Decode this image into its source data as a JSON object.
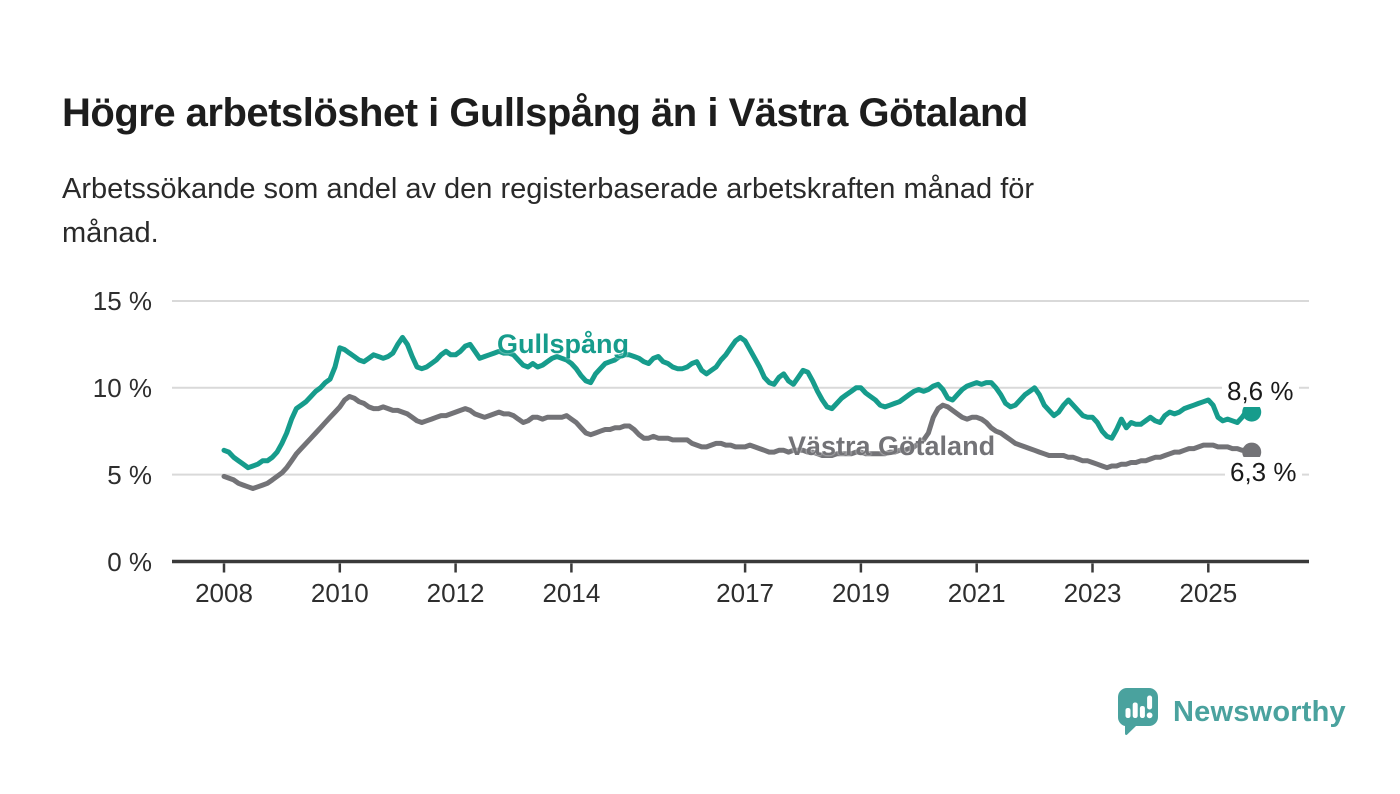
{
  "header": {
    "title": "Högre arbetslöshet i Gullspång än i Västra Götaland",
    "subtitle_line1": "Arbetssökande som andel av den registerbaserade arbetskraften månad för",
    "subtitle_line2": "månad."
  },
  "chart_data": {
    "type": "line",
    "title": "Högre arbetslöshet i Gullspång än i Västra Götaland",
    "subtitle": "Arbetssökande som andel av den registerbaserade arbetskraften månad för månad.",
    "x_start": "2008-01",
    "x_end": "2025-10",
    "frequency": "monthly",
    "ylim": [
      0,
      15
    ],
    "grid": "horizontal",
    "legend_position": "inline-labels",
    "y_tick_labels": [
      "15 %",
      "10 %",
      "5 %",
      "0 %"
    ],
    "y_tick_values": [
      15,
      10,
      5,
      0
    ],
    "x_tick_years": [
      2008,
      2010,
      2012,
      2014,
      2017,
      2019,
      2021,
      2023,
      2025
    ],
    "x_tick_labels": [
      "2008",
      "2010",
      "2012",
      "2014",
      "2017",
      "2019",
      "2021",
      "2023",
      "2025"
    ],
    "series": [
      {
        "name": "Gullspång",
        "color": "#169c8c",
        "end_label": "8,6 %",
        "end_value": 8.6,
        "values": [
          6.4,
          6.3,
          6.0,
          5.8,
          5.6,
          5.4,
          5.5,
          5.6,
          5.8,
          5.8,
          6.0,
          6.3,
          6.8,
          7.4,
          8.2,
          8.8,
          9.0,
          9.2,
          9.5,
          9.8,
          10.0,
          10.3,
          10.5,
          11.2,
          12.3,
          12.2,
          12.0,
          11.8,
          11.6,
          11.5,
          11.7,
          11.9,
          11.8,
          11.7,
          11.8,
          12.0,
          12.5,
          12.9,
          12.5,
          11.8,
          11.2,
          11.1,
          11.2,
          11.4,
          11.6,
          11.9,
          12.1,
          11.9,
          11.9,
          12.1,
          12.4,
          12.5,
          12.1,
          11.7,
          11.8,
          11.9,
          12.0,
          12.1,
          12.0,
          12.0,
          11.9,
          11.6,
          11.3,
          11.2,
          11.4,
          11.2,
          11.3,
          11.5,
          11.7,
          11.8,
          11.7,
          11.6,
          11.4,
          11.1,
          10.7,
          10.4,
          10.3,
          10.8,
          11.1,
          11.4,
          11.5,
          11.6,
          11.8,
          11.9,
          11.9,
          11.8,
          11.7,
          11.5,
          11.4,
          11.7,
          11.8,
          11.5,
          11.4,
          11.2,
          11.1,
          11.1,
          11.2,
          11.4,
          11.5,
          11.0,
          10.8,
          11.0,
          11.2,
          11.6,
          11.9,
          12.3,
          12.7,
          12.9,
          12.7,
          12.2,
          11.7,
          11.2,
          10.6,
          10.3,
          10.2,
          10.6,
          10.8,
          10.4,
          10.2,
          10.6,
          11.0,
          10.9,
          10.4,
          9.8,
          9.3,
          8.9,
          8.8,
          9.1,
          9.4,
          9.6,
          9.8,
          10.0,
          10.0,
          9.7,
          9.5,
          9.3,
          9.0,
          8.9,
          9.0,
          9.1,
          9.2,
          9.4,
          9.6,
          9.8,
          9.9,
          9.8,
          9.9,
          10.1,
          10.2,
          9.9,
          9.4,
          9.3,
          9.6,
          9.9,
          10.1,
          10.2,
          10.3,
          10.2,
          10.3,
          10.3,
          10.0,
          9.6,
          9.1,
          8.9,
          9.0,
          9.3,
          9.6,
          9.8,
          10.0,
          9.6,
          9.0,
          8.7,
          8.4,
          8.6,
          9.0,
          9.3,
          9.0,
          8.7,
          8.4,
          8.3,
          8.3,
          8.0,
          7.5,
          7.2,
          7.1,
          7.6,
          8.2,
          7.7,
          8.0,
          7.9,
          7.9,
          8.1,
          8.3,
          8.1,
          8.0,
          8.4,
          8.6,
          8.5,
          8.6,
          8.8,
          8.9,
          9.0,
          9.1,
          9.2,
          9.3,
          9.0,
          8.3,
          8.1,
          8.2,
          8.1,
          8.0,
          8.3,
          8.7,
          8.6
        ]
      },
      {
        "name": "Västra Götaland",
        "color": "#737377",
        "end_label": "6,3 %",
        "end_value": 6.3,
        "values": [
          4.9,
          4.8,
          4.7,
          4.5,
          4.4,
          4.3,
          4.2,
          4.3,
          4.4,
          4.5,
          4.7,
          4.9,
          5.1,
          5.4,
          5.8,
          6.2,
          6.5,
          6.8,
          7.1,
          7.4,
          7.7,
          8.0,
          8.3,
          8.6,
          8.9,
          9.3,
          9.5,
          9.4,
          9.2,
          9.1,
          8.9,
          8.8,
          8.8,
          8.9,
          8.8,
          8.7,
          8.7,
          8.6,
          8.5,
          8.3,
          8.1,
          8.0,
          8.1,
          8.2,
          8.3,
          8.4,
          8.4,
          8.5,
          8.6,
          8.7,
          8.8,
          8.7,
          8.5,
          8.4,
          8.3,
          8.4,
          8.5,
          8.6,
          8.5,
          8.5,
          8.4,
          8.2,
          8.0,
          8.1,
          8.3,
          8.3,
          8.2,
          8.3,
          8.3,
          8.3,
          8.3,
          8.4,
          8.2,
          8.0,
          7.7,
          7.4,
          7.3,
          7.4,
          7.5,
          7.6,
          7.6,
          7.7,
          7.7,
          7.8,
          7.8,
          7.6,
          7.3,
          7.1,
          7.1,
          7.2,
          7.1,
          7.1,
          7.1,
          7.0,
          7.0,
          7.0,
          7.0,
          6.8,
          6.7,
          6.6,
          6.6,
          6.7,
          6.8,
          6.8,
          6.7,
          6.7,
          6.6,
          6.6,
          6.6,
          6.7,
          6.6,
          6.5,
          6.4,
          6.3,
          6.3,
          6.4,
          6.4,
          6.3,
          6.4,
          6.4,
          6.4,
          6.3,
          6.3,
          6.2,
          6.1,
          6.1,
          6.1,
          6.2,
          6.2,
          6.2,
          6.2,
          6.3,
          6.3,
          6.2,
          6.2,
          6.2,
          6.2,
          6.2,
          6.3,
          6.3,
          6.4,
          6.4,
          6.5,
          6.6,
          6.8,
          7.0,
          7.4,
          8.3,
          8.8,
          9.0,
          8.9,
          8.7,
          8.5,
          8.3,
          8.2,
          8.3,
          8.3,
          8.2,
          8.0,
          7.7,
          7.5,
          7.4,
          7.2,
          7.0,
          6.8,
          6.7,
          6.6,
          6.5,
          6.4,
          6.3,
          6.2,
          6.1,
          6.1,
          6.1,
          6.1,
          6.0,
          6.0,
          5.9,
          5.8,
          5.8,
          5.7,
          5.6,
          5.5,
          5.4,
          5.5,
          5.5,
          5.6,
          5.6,
          5.7,
          5.7,
          5.8,
          5.8,
          5.9,
          6.0,
          6.0,
          6.1,
          6.2,
          6.3,
          6.3,
          6.4,
          6.5,
          6.5,
          6.6,
          6.7,
          6.7,
          6.7,
          6.6,
          6.6,
          6.6,
          6.5,
          6.5,
          6.4,
          6.4,
          6.3
        ]
      }
    ],
    "colors": {
      "grid": "#d9d9d9",
      "axis": "#3a3a3a",
      "tick_text": "#2e2e2e",
      "value_label_text": "#1a1a1a"
    }
  },
  "footer": {
    "brand": "Newsworthy",
    "brand_color": "#4aa29e"
  }
}
